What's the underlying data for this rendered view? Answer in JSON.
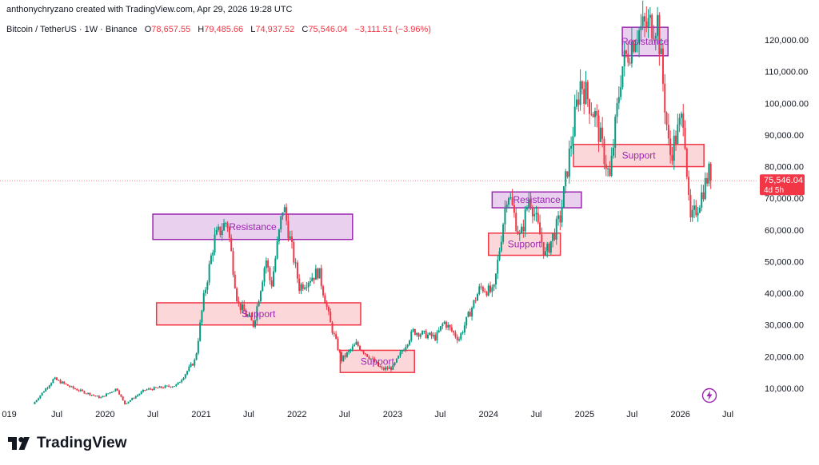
{
  "header": {
    "created_by": "anthonychryzano created with TradingView.com, Apr 29, 2026 19:28 UTC"
  },
  "legend": {
    "symbol": "Bitcoin / TetherUS · 1W · Binance",
    "o_label": "O",
    "o_value": "78,657.55",
    "h_label": "H",
    "h_value": "79,485.66",
    "l_label": "L",
    "l_value": "74,937.52",
    "c_label": "C",
    "c_value": "75,546.04",
    "change": "−3,111.51 (−3.96%)"
  },
  "brand": {
    "name": "TradingView"
  },
  "price_badge": {
    "price": "75,546.04",
    "countdown": "4d 5h"
  },
  "colors": {
    "up": "#089981",
    "down": "#f23645",
    "resistance": "#9c27b0",
    "support": "#f23645",
    "bolt": "#9c27b0"
  },
  "chart_data": {
    "type": "candlestick",
    "timeframe": "1W",
    "y_ticks": [
      {
        "value": 10000,
        "label": "10,000.00"
      },
      {
        "value": 20000,
        "label": "20,000.00"
      },
      {
        "value": 30000,
        "label": "30,000.00"
      },
      {
        "value": 40000,
        "label": "40,000.00"
      },
      {
        "value": 50000,
        "label": "50,000.00"
      },
      {
        "value": 60000,
        "label": "60,000.00"
      },
      {
        "value": 70000,
        "label": "70,000.00"
      },
      {
        "value": 80000,
        "label": "80,000.00"
      },
      {
        "value": 90000,
        "label": "90,000.00"
      },
      {
        "value": 100000,
        "label": "100,000.00"
      },
      {
        "value": 110000,
        "label": "110,000.00"
      },
      {
        "value": 120000,
        "label": "120,000.00"
      }
    ],
    "x_ticks": [
      {
        "date": "2019-01-01",
        "label": "019"
      },
      {
        "date": "2019-07-01",
        "label": "Jul"
      },
      {
        "date": "2020-01-01",
        "label": "2020"
      },
      {
        "date": "2020-07-01",
        "label": "Jul"
      },
      {
        "date": "2021-01-01",
        "label": "2021"
      },
      {
        "date": "2021-07-01",
        "label": "Jul"
      },
      {
        "date": "2022-01-01",
        "label": "2022"
      },
      {
        "date": "2022-07-01",
        "label": "Jul"
      },
      {
        "date": "2023-01-01",
        "label": "2023"
      },
      {
        "date": "2023-07-01",
        "label": "Jul"
      },
      {
        "date": "2024-01-01",
        "label": "2024"
      },
      {
        "date": "2024-07-01",
        "label": "Jul"
      },
      {
        "date": "2025-01-01",
        "label": "2025"
      },
      {
        "date": "2025-07-01",
        "label": "Jul"
      },
      {
        "date": "2026-01-01",
        "label": "2026"
      },
      {
        "date": "2026-07-01",
        "label": "Jul"
      }
    ],
    "last_price": 75546.04,
    "price_path": [
      [
        "2019-04-01",
        5000
      ],
      [
        "2019-06-20",
        13000
      ],
      [
        "2019-09-01",
        10000
      ],
      [
        "2019-12-15",
        7000
      ],
      [
        "2020-02-15",
        10000
      ],
      [
        "2020-03-15",
        5000
      ],
      [
        "2020-06-01",
        9500
      ],
      [
        "2020-10-01",
        11000
      ],
      [
        "2020-12-10",
        19000
      ],
      [
        "2021-01-10",
        38000
      ],
      [
        "2021-02-20",
        57000
      ],
      [
        "2021-04-10",
        63000
      ],
      [
        "2021-05-20",
        37000
      ],
      [
        "2021-07-20",
        30000
      ],
      [
        "2021-09-05",
        51000
      ],
      [
        "2021-09-25",
        42000
      ],
      [
        "2021-11-10",
        68000
      ],
      [
        "2022-01-10",
        42000
      ],
      [
        "2022-03-25",
        47000
      ],
      [
        "2022-05-10",
        30000
      ],
      [
        "2022-06-20",
        19000
      ],
      [
        "2022-08-15",
        24000
      ],
      [
        "2022-10-15",
        19000
      ],
      [
        "2022-11-20",
        16000
      ],
      [
        "2023-01-01",
        16500
      ],
      [
        "2023-03-20",
        28000
      ],
      [
        "2023-06-15",
        26000
      ],
      [
        "2023-07-15",
        31000
      ],
      [
        "2023-09-10",
        25500
      ],
      [
        "2023-12-01",
        42000
      ],
      [
        "2024-01-20",
        40000
      ],
      [
        "2024-03-14",
        73000
      ],
      [
        "2024-05-01",
        57000
      ],
      [
        "2024-06-05",
        71000
      ],
      [
        "2024-08-05",
        52000
      ],
      [
        "2024-10-01",
        64000
      ],
      [
        "2024-11-15",
        90000
      ],
      [
        "2024-12-17",
        107000
      ],
      [
        "2025-02-10",
        96000
      ],
      [
        "2025-04-07",
        76000
      ],
      [
        "2025-05-22",
        111000
      ],
      [
        "2025-07-14",
        122000
      ],
      [
        "2025-08-14",
        124000
      ],
      [
        "2025-10-06",
        126000
      ],
      [
        "2025-11-21",
        83000
      ],
      [
        "2026-01-14",
        97000
      ],
      [
        "2026-02-06",
        62000
      ],
      [
        "2026-03-10",
        68000
      ],
      [
        "2026-04-20",
        78000
      ],
      [
        "2026-04-29",
        75546
      ]
    ],
    "zones": [
      {
        "type": "resistance",
        "label": "Resistance",
        "start": "2020-07-01",
        "end": "2022-08-01",
        "low": 57000,
        "high": 65000
      },
      {
        "type": "support",
        "label": "Support",
        "start": "2020-07-15",
        "end": "2022-09-01",
        "low": 30000,
        "high": 37000
      },
      {
        "type": "support",
        "label": "Support",
        "start": "2022-06-15",
        "end": "2023-03-25",
        "low": 15000,
        "high": 22000
      },
      {
        "type": "support",
        "label": "Support",
        "start": "2024-01-01",
        "end": "2024-10-01",
        "low": 52000,
        "high": 59000
      },
      {
        "type": "resistance",
        "label": "Resistance",
        "start": "2024-01-15",
        "end": "2024-12-20",
        "low": 67000,
        "high": 72000
      },
      {
        "type": "support",
        "label": "Support",
        "start": "2024-11-20",
        "end": "2026-04-01",
        "low": 80000,
        "high": 87000
      },
      {
        "type": "resistance",
        "label": "Resistance",
        "start": "2025-05-25",
        "end": "2025-11-15",
        "low": 115000,
        "high": 124000
      }
    ]
  }
}
